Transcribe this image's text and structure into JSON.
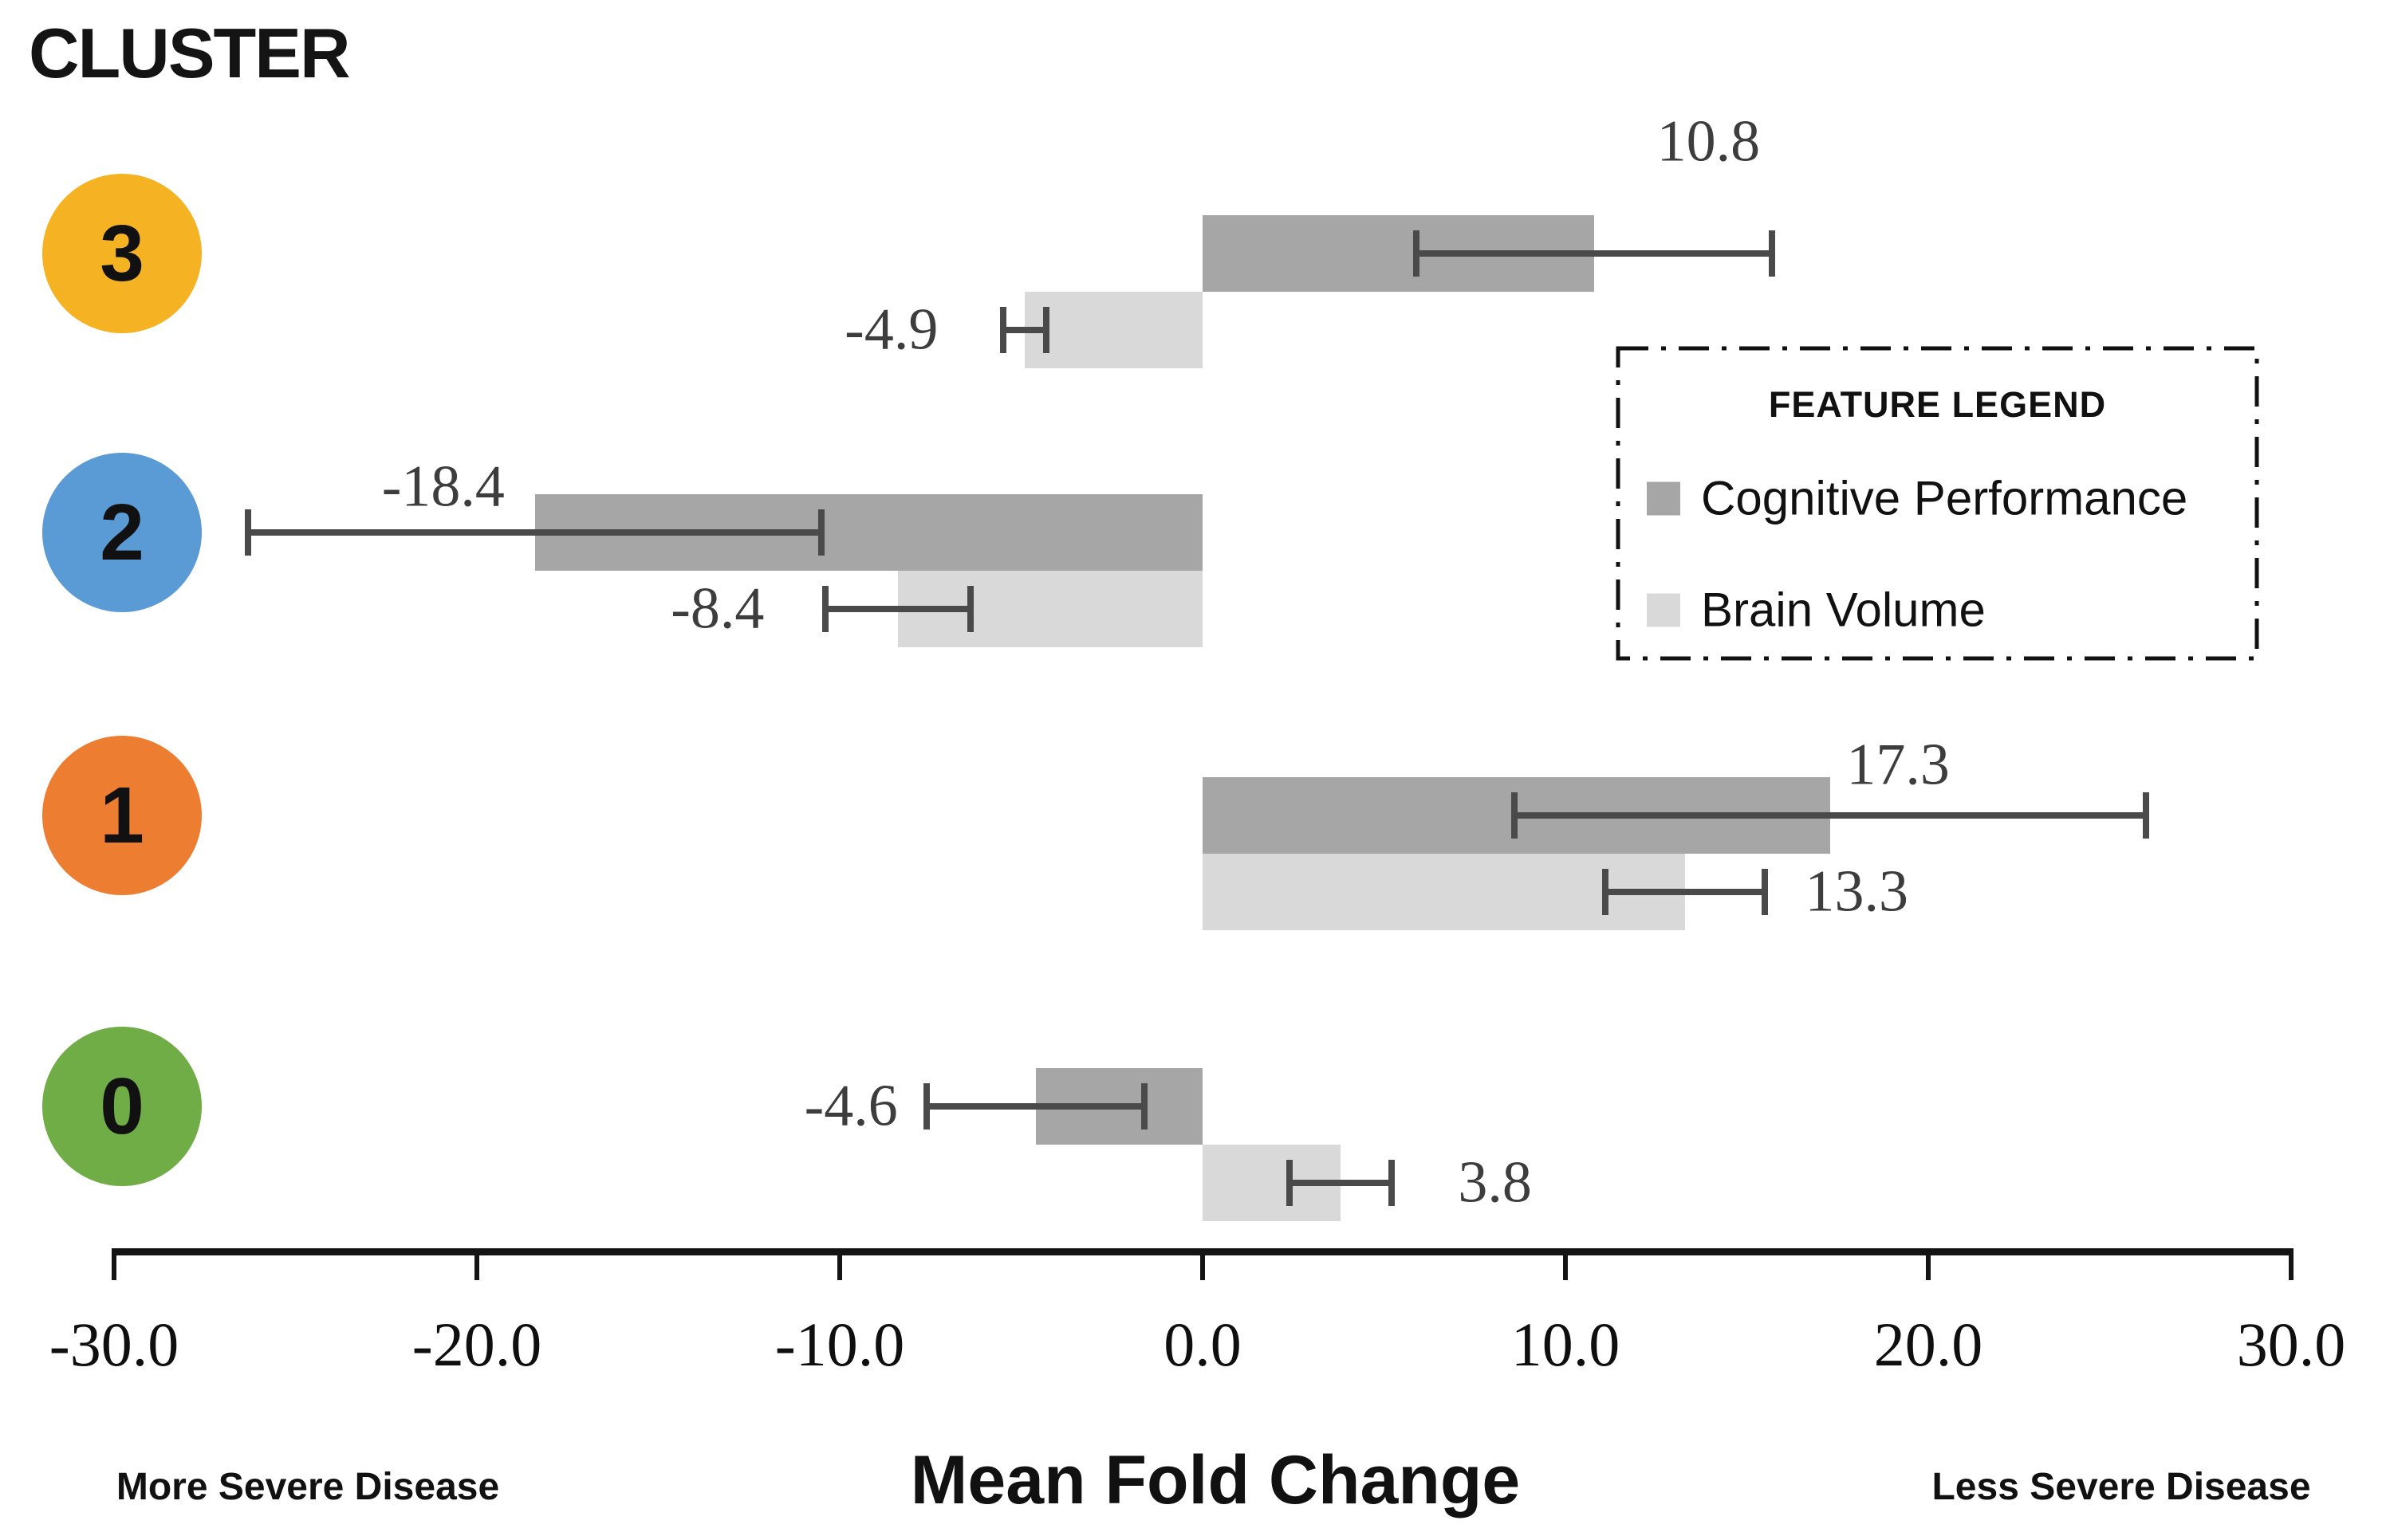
{
  "page_title": "CLUSTER",
  "legend": {
    "title": "FEATURE LEGEND",
    "items": [
      {
        "label": "Cognitive Performance",
        "color": "#A6A6A6"
      },
      {
        "label": "Brain Volume",
        "color": "#D9D9D9"
      }
    ]
  },
  "axis": {
    "xlim": [
      -30,
      30
    ],
    "tick_labels": [
      "-30.0",
      "-20.0",
      "-10.0",
      "0.0",
      "10.0",
      "20.0",
      "30.0"
    ],
    "xlabel": "Mean Fold Change",
    "left_caption": "More Severe Disease",
    "right_caption": "Less Severe Disease"
  },
  "chart_data": {
    "type": "bar",
    "orientation": "horizontal",
    "title": "CLUSTER",
    "xlabel": "Mean Fold Change",
    "xlim": [
      -30,
      30
    ],
    "grid": false,
    "legend_position": "upper right",
    "legend_title": "FEATURE LEGEND",
    "categories": [
      "3",
      "2",
      "1",
      "0"
    ],
    "category_colors": [
      "#F5B324",
      "#5B9BD5",
      "#ED7D31",
      "#70AD47"
    ],
    "series": [
      {
        "name": "Cognitive Performance",
        "color": "#A6A6A6",
        "values": [
          10.8,
          -18.4,
          17.3,
          -4.6
        ],
        "errors": [
          4.9,
          7.9,
          8.7,
          3.0
        ]
      },
      {
        "name": "Brain Volume",
        "color": "#D9D9D9",
        "values": [
          -4.9,
          -8.4,
          13.3,
          3.8
        ],
        "errors": [
          0.6,
          2.0,
          2.2,
          1.4
        ]
      }
    ],
    "annotations": {
      "left_caption": "More Severe Disease",
      "right_caption": "Less Severe Disease"
    }
  }
}
